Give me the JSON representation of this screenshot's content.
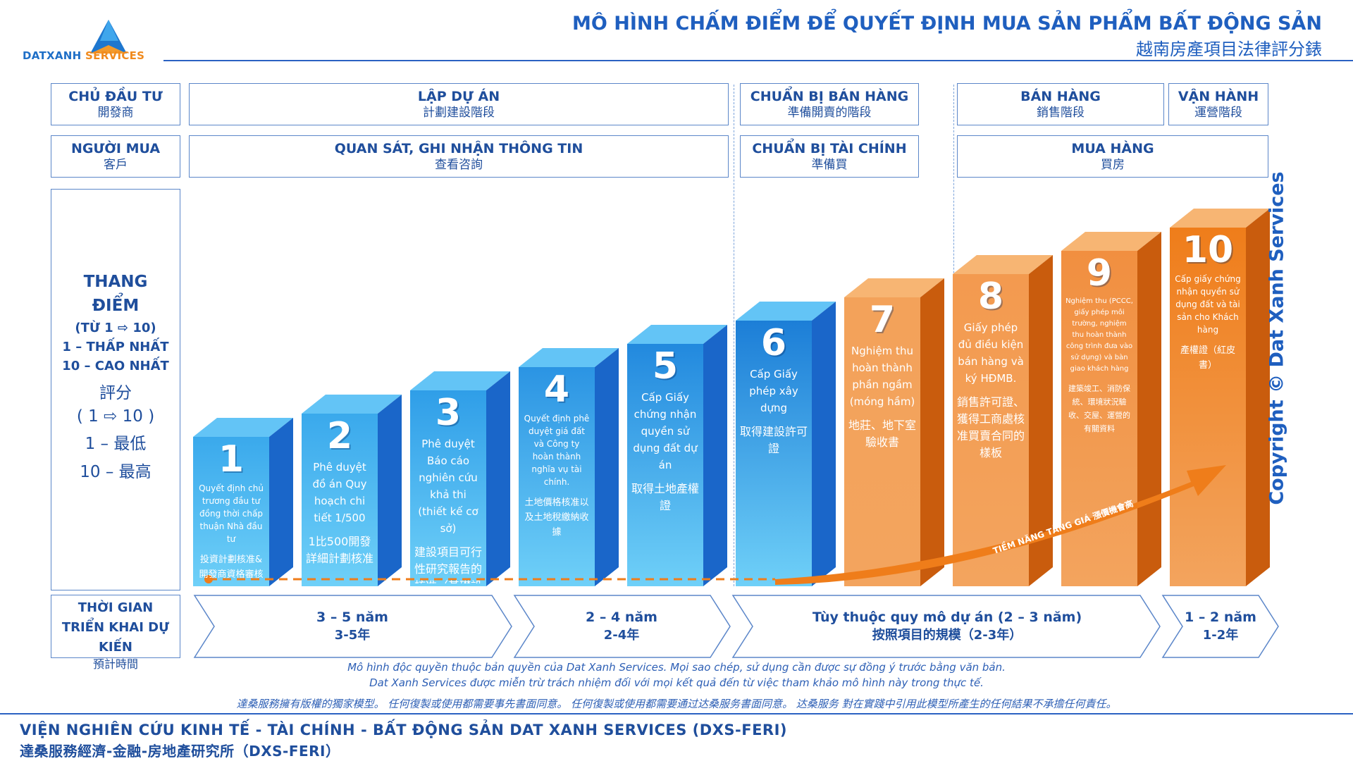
{
  "header": {
    "logo_brand": "DATXANH",
    "logo_suffix": " SERVICES",
    "title_vi": "MÔ HÌNH CHẤM ĐIỂM ĐỂ QUYẾT ĐỊNH MUA SẢN PHẨM BẤT ĐỘNG SẢN",
    "title_zh": "越南房產項目法律評分錶"
  },
  "rows": {
    "developer": {
      "label_vi": "CHỦ ĐẦU TƯ",
      "label_zh": "開發商"
    },
    "buyer": {
      "label_vi": "NGƯỜI MUA",
      "label_zh": "客戶"
    },
    "developer_phases": [
      {
        "vi": "LẬP DỰ ÁN",
        "zh": "計劃建設階段"
      },
      {
        "vi": "CHUẨN BỊ BÁN HÀNG",
        "zh": "準備開賣的階段"
      },
      {
        "vi": "BÁN HÀNG",
        "zh": "銷售階段"
      },
      {
        "vi": "VẬN HÀNH",
        "zh": "運營階段"
      }
    ],
    "buyer_phases": [
      {
        "vi": "QUAN SÁT, GHI NHẬN THÔNG TIN",
        "zh": "查看咨詢"
      },
      {
        "vi": "CHUẨN BỊ TÀI CHÍNH",
        "zh": "準備買"
      },
      {
        "vi": "MUA HÀNG",
        "zh": "買房"
      }
    ]
  },
  "score_panel": {
    "l1": "THANG",
    "l2": "ĐIỂM",
    "l3": "(TỪ 1 ⇨ 10)",
    "l4": "1 – THẤP NHẤT",
    "l5": "10 – CAO NHẤT",
    "l6": "評分",
    "l7": "( 1 ⇨ 10 )",
    "l8": "1 – 最低",
    "l9": "10 – 最高"
  },
  "steps": [
    {
      "num": "1",
      "vi": "Quyết định chủ trương đầu tư đồng thời chấp thuận Nhà đầu tư",
      "zh": "投資計劃核准&開發商資格審核"
    },
    {
      "num": "2",
      "vi": "Phê duyệt đồ án Quy hoạch chi tiết 1/500",
      "zh": "1比500開發詳細計劃核准"
    },
    {
      "num": "3",
      "vi": "Phê duyệt Báo cáo nghiên cứu khả thi (thiết kế cơ sở)",
      "zh": "建設項目可行性研究報告的核准（基礎設計核准）"
    },
    {
      "num": "4",
      "vi": "Quyết định phê duyệt giá đất và Công ty hoàn thành nghĩa vụ tài chính.",
      "zh": "土地價格核准以及土地稅繳納收據"
    },
    {
      "num": "5",
      "vi": "Cấp Giấy chứng nhận quyền sử dụng đất dự án",
      "zh": "取得土地產權證"
    },
    {
      "num": "6",
      "vi": "Cấp Giấy phép xây dựng",
      "zh": "取得建設許可證"
    },
    {
      "num": "7",
      "vi": "Nghiệm thu hoàn thành phần ngầm (móng hầm)",
      "zh": "地莊、地下室驗收書"
    },
    {
      "num": "8",
      "vi": "Giấy phép đủ điều kiện bán hàng và ký HĐMB.",
      "zh": "銷售許可證、獲得工商處核准買賣合同的樣板"
    },
    {
      "num": "9",
      "vi": "Nghiệm thu (PCCC, giấy phép môi trường, nghiệm thu hoàn thành công trình đưa vào sử dụng) và bàn giao khách hàng",
      "zh": "建築竣工、消防保統、環境狀況驗收、交屋、運營的有關資料"
    },
    {
      "num": "10",
      "vi": "Cấp giấy chứng nhận quyền sử dụng đất và tài sản cho Khách hàng",
      "zh": "產權證（紅皮書）"
    }
  ],
  "trend_label": "TIỀM NĂNG TĂNG GIÁ 漲價機會高",
  "timeline": {
    "label_vi": "THỜI GIAN TRIỂN KHAI DỰ KIẾN",
    "label_zh": "預計時間",
    "segments": [
      {
        "vi": "3 – 5 năm",
        "zh": "3-5年"
      },
      {
        "vi": "2 – 4 năm",
        "zh": "2-4年"
      },
      {
        "vi": "Tùy thuộc quy mô dự án (2 – 3 năm)",
        "zh": "按照項目的規模（2-3年）"
      },
      {
        "vi": "1 – 2 năm",
        "zh": "1-2年"
      }
    ]
  },
  "disclaimer": {
    "vi_1": "Mô hình độc quyền thuộc bản quyền của Dat Xanh Services. Mọi sao chép, sử dụng cần được sự đồng ý trước bằng văn bản.",
    "vi_2": "Dat Xanh Services được miễn trừ trách nhiệm đối với mọi kết quả đến từ việc tham khảo mô hình này trong thực tế.",
    "zh": "達桑服務擁有版權的獨家模型。 任何復製或使用都需要事先書面同意。 任何復製或使用都需要通过达桑服务書面同意。 达桑服务 對在實踐中引用此模型所產生的任何結果不承擔任何責任。"
  },
  "footer": {
    "vi": "VIỆN NGHIÊN CỨU KINH TẾ - TÀI CHÍNH - BẤT ĐỘNG SẢN DAT XANH SERVICES (DXS-FERI)",
    "zh": "達桑服務經濟-金融-房地產研究所（DXS-FERI）"
  },
  "copyright": "Copyright © Dat Xanh Services",
  "colors": {
    "blue_dark": "#1a66c9",
    "blue_light": "#5fc3f5",
    "orange": "#ef7d1a",
    "orange_light": "#f7b06a",
    "text_blue": "#1f4e9c"
  }
}
